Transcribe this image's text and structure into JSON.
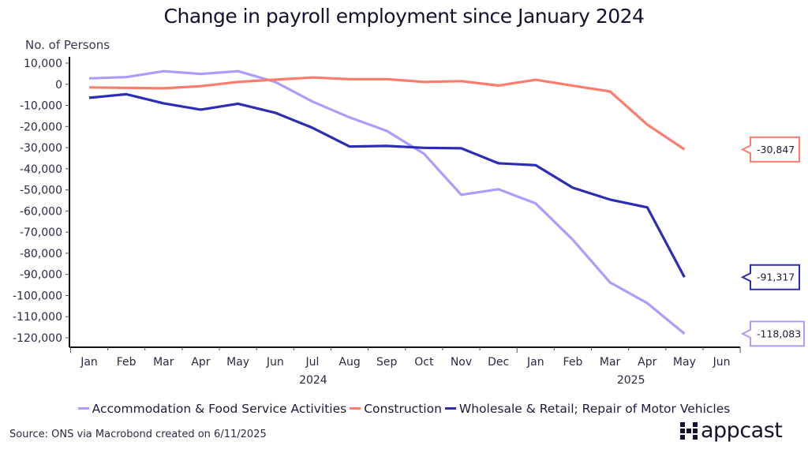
{
  "chart_data": {
    "type": "line",
    "title": "Change in payroll employment since January 2024",
    "ylabel": "No. of Persons",
    "xlabel": "",
    "ylim": [
      -120000,
      10000
    ],
    "y_ticks": [
      10000,
      0,
      -10000,
      -20000,
      -30000,
      -40000,
      -50000,
      -60000,
      -70000,
      -80000,
      -90000,
      -100000,
      -110000,
      -120000
    ],
    "y_tick_labels": [
      "10,000",
      "0",
      "-10,000",
      "-20,000",
      "-30,000",
      "-40,000",
      "-50,000",
      "-60,000",
      "-70,000",
      "-80,000",
      "-90,000",
      "-100,000",
      "-110,000",
      "-120,000"
    ],
    "x_tick_labels": [
      "Jan",
      "Feb",
      "Mar",
      "Apr",
      "May",
      "Jun",
      "Jul",
      "Aug",
      "Sep",
      "Oct",
      "Nov",
      "Dec",
      "Jan",
      "Feb",
      "Mar",
      "Apr",
      "May",
      "Jun"
    ],
    "x_year_labels": [
      {
        "label": "2024",
        "center_index": 6
      },
      {
        "label": "2025",
        "center_index": 14.5
      }
    ],
    "grid": false,
    "legend_position": "bottom",
    "series": [
      {
        "name": "Accommodation & Food Service Activities",
        "color": "#ab9cff",
        "values": [
          2800,
          3400,
          6200,
          4900,
          6200,
          1100,
          -8200,
          -15700,
          -22100,
          -32900,
          -52300,
          -49700,
          -56400,
          -73600,
          -93800,
          -103600,
          -118083
        ],
        "end_label": "-118,083"
      },
      {
        "name": "Construction",
        "color": "#ff7b6b",
        "values": [
          -1500,
          -1700,
          -1900,
          -900,
          1100,
          2200,
          3200,
          2400,
          2400,
          1100,
          1500,
          -600,
          2100,
          -700,
          -3400,
          -19100,
          -30847
        ],
        "end_label": "-30,847"
      },
      {
        "name": "Wholesale & Retail; Repair of Motor Vehicles",
        "color": "#2b2db4",
        "values": [
          -6400,
          -4700,
          -9000,
          -12000,
          -9200,
          -13500,
          -20600,
          -29500,
          -29200,
          -30100,
          -30300,
          -37400,
          -38300,
          -49000,
          -54600,
          -58300,
          -91317
        ],
        "end_label": "-91,317"
      }
    ]
  },
  "footer": {
    "source": "Source: ONS via Macrobond created on 6/11/2025",
    "logo_text": "appcast"
  }
}
